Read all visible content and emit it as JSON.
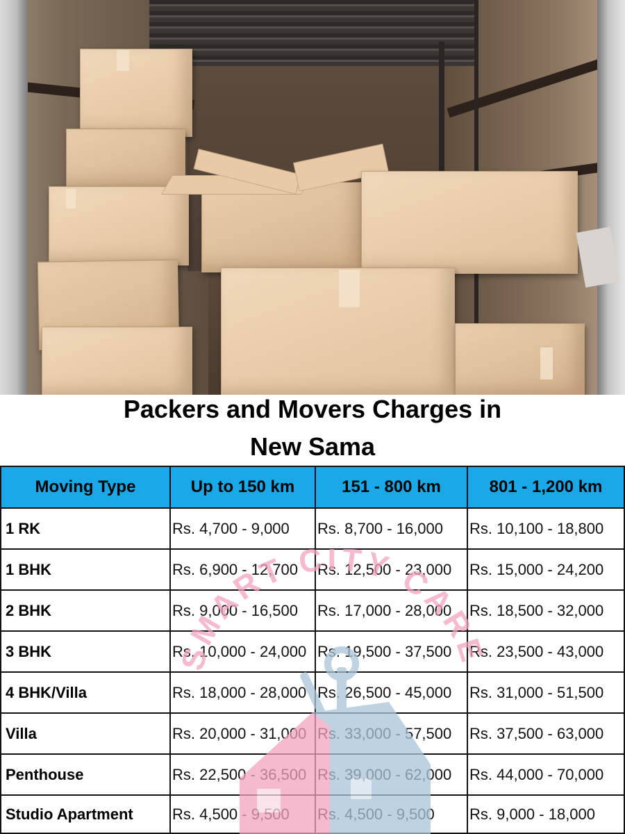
{
  "title": {
    "line1": "Packers and Movers Charges in",
    "line2": "New Sama"
  },
  "photo": {
    "description_icon": "moving-truck-boxes-photo"
  },
  "table": {
    "headers": [
      "Moving Type",
      "Up to 150 km",
      "151 - 800 km",
      "801 - 1,200 km"
    ],
    "rows": [
      {
        "type": "1 RK",
        "c1": "Rs. 4,700 - 9,000",
        "c2": "Rs. 8,700 - 16,000",
        "c3": "Rs. 10,100 - 18,800"
      },
      {
        "type": "1 BHK",
        "c1": "Rs. 6,900 - 12,700",
        "c2": "Rs. 12,500 - 23,000",
        "c3": "Rs. 15,000 - 24,200"
      },
      {
        "type": "2 BHK",
        "c1": "Rs. 9,000 - 16,500",
        "c2": "Rs. 17,000 - 28,000",
        "c3": "Rs. 18,500 - 32,000"
      },
      {
        "type": "3 BHK",
        "c1": "Rs. 10,000 - 24,000",
        "c2": "Rs. 19,500 - 37,500",
        "c3": "Rs. 23,500 - 43,000"
      },
      {
        "type": "4 BHK/Villa",
        "c1": "Rs. 18,000 - 28,000",
        "c2": "Rs. 26,500 - 45,000",
        "c3": "Rs. 31,000 - 51,500"
      },
      {
        "type": "Villa",
        "c1": "Rs. 20,000 - 31,000",
        "c2": "Rs. 33,000 - 57,500",
        "c3": "Rs. 37,500 - 63,000"
      },
      {
        "type": "Penthouse",
        "c1": "Rs. 22,500 - 36,500",
        "c2": "Rs. 39,000 - 62,000",
        "c3": "Rs. 44,000 - 70,000"
      },
      {
        "type": "Studio Apartment",
        "c1": "Rs. 4,500 - 9,500",
        "c2": "Rs. 4,500 - 9,500",
        "c3": "Rs. 9,000 - 18,000"
      }
    ]
  },
  "watermark": {
    "text": "SMART CITY CARE",
    "pink": "#f3a3c0",
    "blue": "#a9c4d8"
  },
  "colors": {
    "header_bg": "#1aa8e8",
    "border": "#111111"
  }
}
